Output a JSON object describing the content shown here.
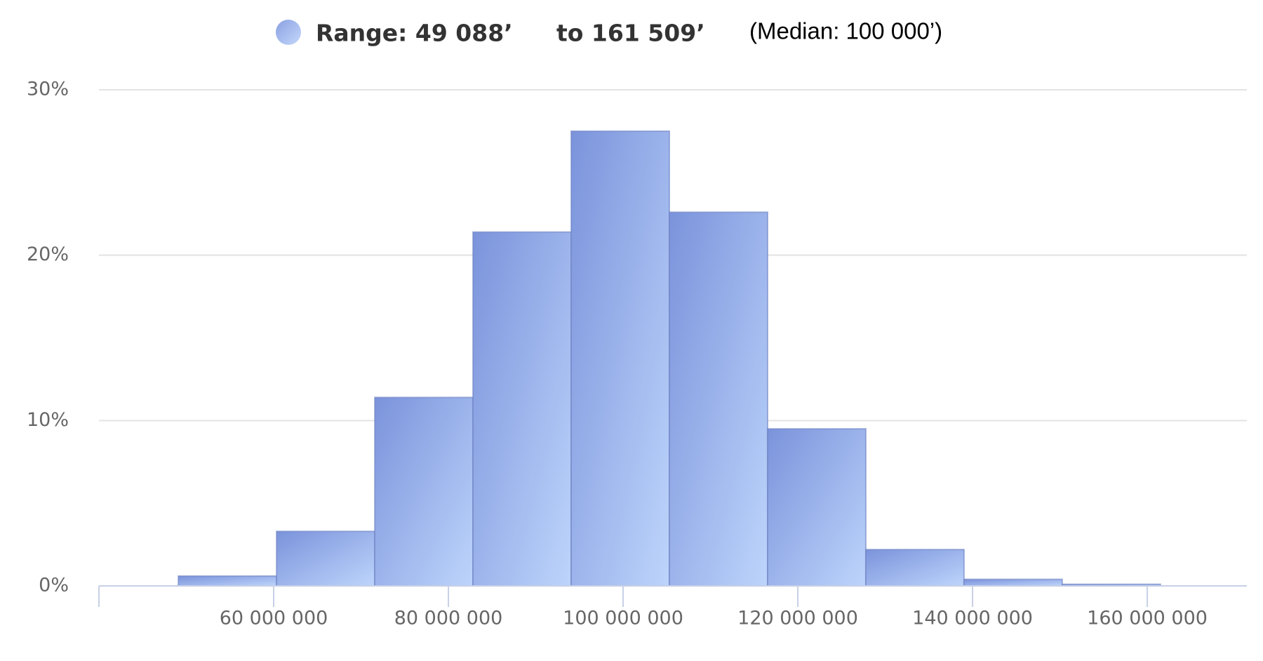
{
  "chart_data": {
    "type": "histogram",
    "series": [
      {
        "name": "Range: 49 088’",
        "color": "#8ea6e6",
        "values": [
          0.6,
          3.3,
          11.4,
          21.4,
          27.5,
          22.6,
          9.5,
          2.2,
          0.4,
          0.1
        ]
      }
    ],
    "bins": [
      49088000,
      60330000,
      71572000,
      82814000,
      94056000,
      105298000,
      116541000,
      127783000,
      139025000,
      150267000,
      161509000
    ],
    "annotations": [
      "to 161 509’",
      "(Median: 100 000’)"
    ],
    "xlim": [
      40000000,
      171400000
    ],
    "xticks": [
      {
        "value": 60000000,
        "label": "60 000 000"
      },
      {
        "value": 80000000,
        "label": "80 000 000"
      },
      {
        "value": 100000000,
        "label": "100 000 000"
      },
      {
        "value": 120000000,
        "label": "120 000 000"
      },
      {
        "value": 140000000,
        "label": "140 000 000"
      },
      {
        "value": 160000000,
        "label": "160 000 000"
      }
    ],
    "ylim": [
      0,
      30
    ],
    "yticks": [
      {
        "value": 0,
        "label": "0%"
      },
      {
        "value": 10,
        "label": "10%"
      },
      {
        "value": 20,
        "label": "20%"
      },
      {
        "value": 30,
        "label": "30%"
      }
    ],
    "grid": true,
    "legend": "top"
  }
}
